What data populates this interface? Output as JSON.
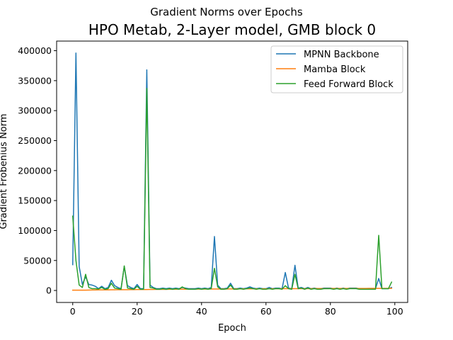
{
  "figure": {
    "suptitle": "Gradient Norms over Epochs"
  },
  "chart_data": {
    "type": "line",
    "title": "HPO Metab, 2-Layer model, GMB block 0",
    "xlabel": "Epoch",
    "ylabel": "Gradient Frobenius Norm",
    "xlim": [
      -5,
      104
    ],
    "ylim": [
      -20000,
      416000
    ],
    "xticks": [
      0,
      20,
      40,
      60,
      80,
      100
    ],
    "yticks": [
      0,
      50000,
      100000,
      150000,
      200000,
      250000,
      300000,
      350000,
      400000
    ],
    "grid": false,
    "legend_position": "top-right",
    "x": [
      0,
      1,
      2,
      3,
      4,
      5,
      6,
      7,
      8,
      9,
      10,
      11,
      12,
      13,
      14,
      15,
      16,
      17,
      18,
      19,
      20,
      21,
      22,
      23,
      24,
      25,
      26,
      27,
      28,
      29,
      30,
      31,
      32,
      33,
      34,
      35,
      36,
      37,
      38,
      39,
      40,
      41,
      42,
      43,
      44,
      45,
      46,
      47,
      48,
      49,
      50,
      51,
      52,
      53,
      54,
      55,
      56,
      57,
      58,
      59,
      60,
      61,
      62,
      63,
      64,
      65,
      66,
      67,
      68,
      69,
      70,
      71,
      72,
      73,
      74,
      75,
      76,
      77,
      78,
      79,
      80,
      81,
      82,
      83,
      84,
      85,
      86,
      87,
      88,
      89,
      90,
      91,
      92,
      93,
      94,
      95,
      96,
      97,
      98,
      99
    ],
    "series": [
      {
        "name": "MPNN Backbone",
        "color": "#1f77b4",
        "values": [
          43000,
          396000,
          40000,
          10000,
          23000,
          10000,
          9000,
          7000,
          3000,
          7000,
          3000,
          5000,
          17000,
          8000,
          5000,
          3000,
          40000,
          8000,
          5000,
          3000,
          10000,
          3000,
          3000,
          368000,
          9000,
          5000,
          3000,
          3000,
          4000,
          3000,
          4000,
          3000,
          4000,
          3000,
          5000,
          4000,
          3000,
          3000,
          3000,
          4000,
          3000,
          4000,
          3000,
          5000,
          90000,
          9000,
          3000,
          3000,
          4000,
          12000,
          3000,
          3000,
          4000,
          3000,
          4000,
          6000,
          4000,
          3000,
          4000,
          3000,
          3000,
          5000,
          3000,
          4000,
          4000,
          3000,
          30000,
          4000,
          3000,
          42000,
          4000,
          5000,
          3000,
          5000,
          3000,
          4000,
          3000,
          3000,
          4000,
          4000,
          4000,
          3000,
          4000,
          3000,
          4000,
          3000,
          4000,
          4000,
          4000,
          3000,
          3000,
          3000,
          3000,
          3000,
          3000,
          20000,
          3000,
          3000,
          3000,
          5000
        ]
      },
      {
        "name": "Mamba Block",
        "color": "#ff7f0e",
        "values": [
          500,
          500,
          500,
          600,
          600,
          700,
          800,
          800,
          900,
          900,
          1000,
          1000,
          1100,
          1100,
          1200,
          1200,
          1300,
          1300,
          1400,
          1400,
          1500,
          1500,
          1600,
          1600,
          1700,
          1700,
          1800,
          1800,
          1900,
          1900,
          2000,
          2000,
          2000,
          2100,
          2100,
          2100,
          2200,
          2200,
          2200,
          2300,
          2300,
          2300,
          2400,
          2400,
          2400,
          2500,
          2500,
          2500,
          2500,
          2600,
          2600,
          2600,
          2600,
          2700,
          2700,
          2700,
          2700,
          2800,
          2800,
          2800,
          2800,
          2900,
          2900,
          2900,
          2900,
          3000,
          3000,
          3000,
          3000,
          3000,
          3100,
          3100,
          3100,
          3100,
          3100,
          3200,
          3200,
          3200,
          3200,
          3200,
          3300,
          3300,
          3300,
          3300,
          3300,
          3300,
          3400,
          3400,
          3400,
          3400,
          3400,
          3400,
          3500,
          3500,
          3500,
          3500,
          3500,
          3500,
          3500,
          3600
        ]
      },
      {
        "name": "Feed Forward Block",
        "color": "#2ca02c",
        "values": [
          124000,
          50000,
          9000,
          5000,
          27000,
          5000,
          3000,
          3000,
          2500,
          5000,
          2000,
          3000,
          12000,
          4000,
          3000,
          2000,
          41000,
          4000,
          3000,
          2000,
          7000,
          2000,
          2000,
          337000,
          5000,
          4000,
          2000,
          2000,
          3000,
          2000,
          3000,
          2000,
          3000,
          2000,
          6000,
          3000,
          2000,
          2000,
          2000,
          3000,
          2000,
          3000,
          2000,
          3000,
          37000,
          6000,
          2000,
          2000,
          3000,
          9000,
          2000,
          2000,
          3000,
          2000,
          3000,
          4000,
          3000,
          2000,
          3000,
          2000,
          2000,
          3000,
          2000,
          3000,
          3000,
          2000,
          8000,
          3000,
          2000,
          27000,
          3000,
          4000,
          2000,
          4000,
          2000,
          3000,
          2000,
          2000,
          3000,
          3000,
          3000,
          2000,
          3000,
          2000,
          3000,
          2000,
          3000,
          3000,
          3000,
          2000,
          2000,
          2000,
          2000,
          2000,
          2000,
          92000,
          3000,
          3000,
          3000,
          14000
        ]
      }
    ]
  }
}
